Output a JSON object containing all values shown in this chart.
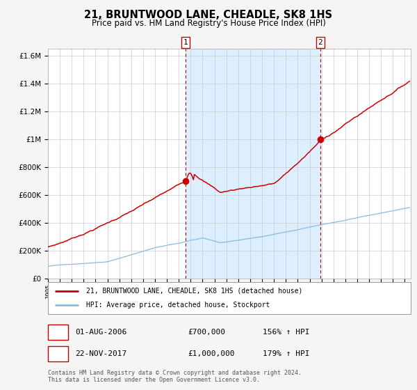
{
  "title": "21, BRUNTWOOD LANE, CHEADLE, SK8 1HS",
  "subtitle": "Price paid vs. HM Land Registry's House Price Index (HPI)",
  "bg_color": "#f5f5f5",
  "plot_bg_color": "#ffffff",
  "grid_color": "#cccccc",
  "red_line_color": "#cc0000",
  "blue_line_color": "#88bbdd",
  "highlight_bg_color": "#ddeeff",
  "dashed_line_color": "#cc0000",
  "sale1_date_num": 2006.583,
  "sale1_price": 700000,
  "sale2_date_num": 2017.9,
  "sale2_price": 1000000,
  "legend_red_label": "21, BRUNTWOOD LANE, CHEADLE, SK8 1HS (detached house)",
  "legend_blue_label": "HPI: Average price, detached house, Stockport",
  "annotation1_date": "01-AUG-2006",
  "annotation1_price": "£700,000",
  "annotation1_hpi": "156% ↑ HPI",
  "annotation2_date": "22-NOV-2017",
  "annotation2_price": "£1,000,000",
  "annotation2_hpi": "179% ↑ HPI",
  "footnote1": "Contains HM Land Registry data © Crown copyright and database right 2024.",
  "footnote2": "This data is licensed under the Open Government Licence v3.0.",
  "xmin": 1995.0,
  "xmax": 2025.5,
  "ymin": 0,
  "ymax": 1650000
}
